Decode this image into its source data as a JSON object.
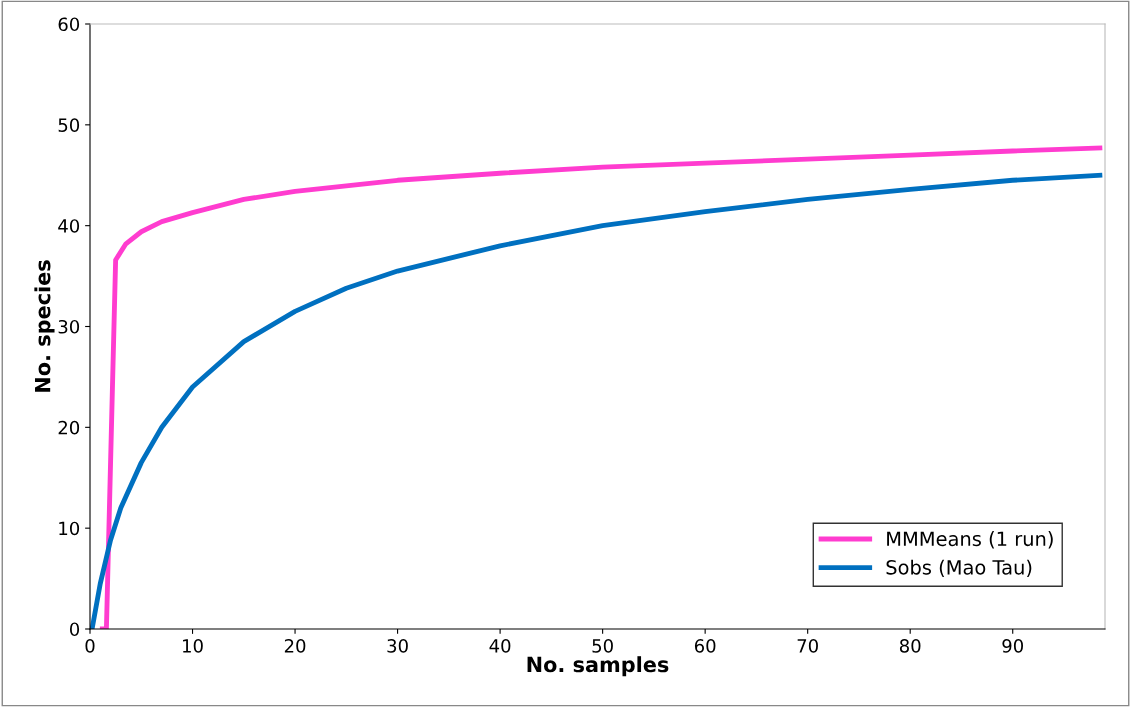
{
  "chart_data": {
    "type": "line",
    "xlabel": "No. samples",
    "ylabel": "No. species",
    "xlim": [
      0,
      99
    ],
    "xticks": [
      0,
      10,
      20,
      30,
      40,
      50,
      60,
      70,
      80,
      90
    ],
    "ylim": [
      0,
      60
    ],
    "yticks": [
      0,
      10,
      20,
      30,
      40,
      50,
      60
    ],
    "grid": false,
    "legend": "bottom right",
    "marker": "none",
    "line_style": "solid",
    "series": [
      {
        "name": "MMMeans (1 run)",
        "color": "#ff3ccf",
        "x": [
          1.2,
          1.6,
          2.5,
          3.5,
          5,
          7,
          10,
          15,
          20,
          30,
          40,
          50,
          60,
          70,
          80,
          90,
          98.5
        ],
        "values": [
          0,
          0,
          36.6,
          38.2,
          39.4,
          40.4,
          41.3,
          42.6,
          43.4,
          44.5,
          45.2,
          45.8,
          46.2,
          46.6,
          47.0,
          47.4,
          47.7
        ]
      },
      {
        "name": "Sobs (Mao Tau)",
        "color": "#0070c0",
        "x": [
          0.2,
          1,
          2,
          3,
          5,
          7,
          10,
          15,
          20,
          25,
          30,
          40,
          50,
          60,
          70,
          80,
          90,
          98.5
        ],
        "values": [
          0,
          4.5,
          8.8,
          12,
          16.5,
          20,
          24,
          28.5,
          31.5,
          33.8,
          35.5,
          38,
          40,
          41.4,
          42.6,
          43.6,
          44.5,
          45
        ]
      }
    ]
  }
}
